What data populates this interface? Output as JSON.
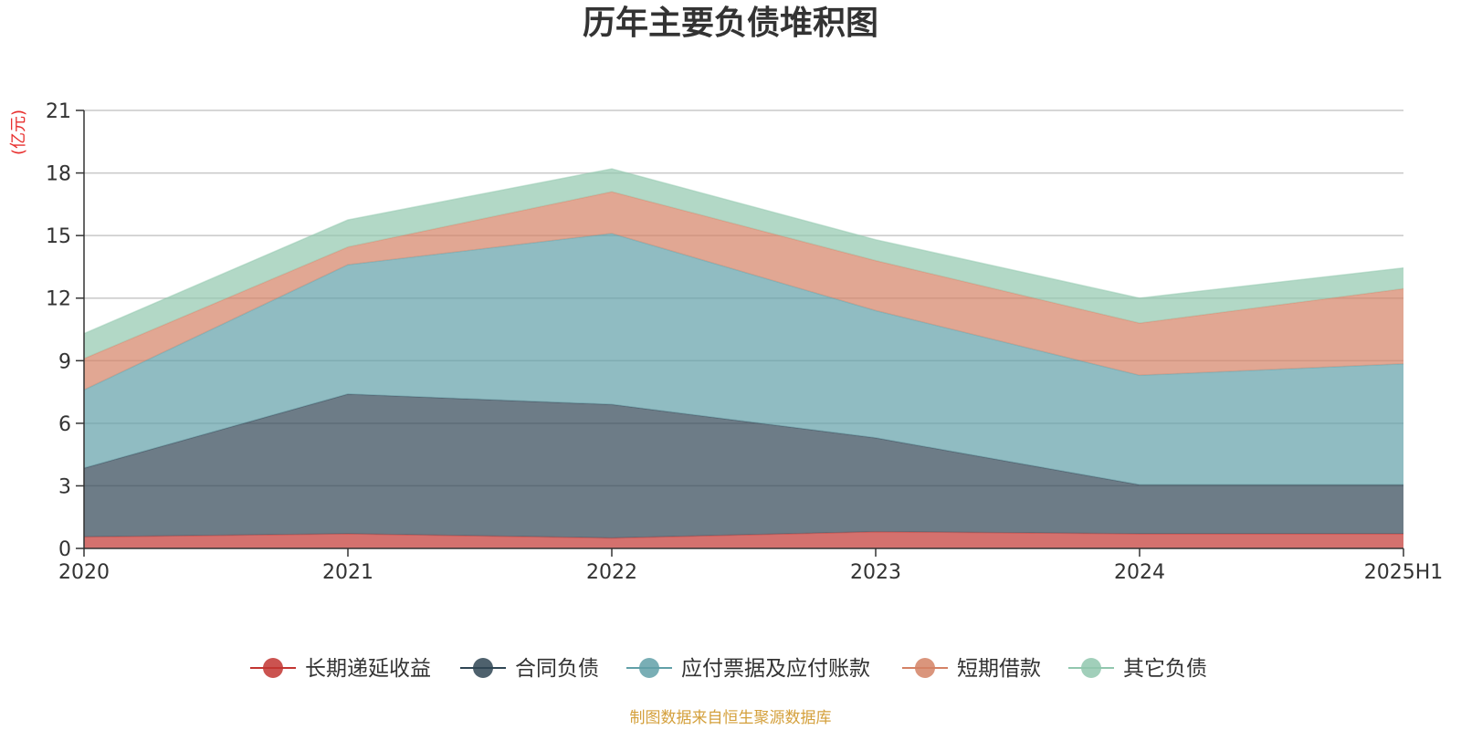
{
  "chart_data": {
    "type": "area",
    "title": "历年主要负债堆积图",
    "y_unit": "(亿元)",
    "categories": [
      "2020",
      "2021",
      "2022",
      "2023",
      "2024",
      "2025H1"
    ],
    "ylim": [
      0,
      21
    ],
    "yticks": [
      0,
      3,
      6,
      9,
      12,
      15,
      18,
      21
    ],
    "grid": true,
    "stacked": true,
    "legend_position": "bottom",
    "series": [
      {
        "name": "长期递延收益",
        "color": "#c23531",
        "values": [
          0.55,
          0.7,
          0.5,
          0.8,
          0.7,
          0.7
        ]
      },
      {
        "name": "合同负债",
        "color": "#2f4554",
        "values": [
          3.3,
          6.7,
          6.4,
          4.5,
          2.35,
          2.35
        ]
      },
      {
        "name": "应付票据及应付账款",
        "color": "#61a0a8",
        "values": [
          3.75,
          6.2,
          8.2,
          6.1,
          5.25,
          5.8
        ]
      },
      {
        "name": "短期借款",
        "color": "#d48265",
        "values": [
          1.5,
          0.85,
          2.0,
          2.4,
          2.5,
          3.6
        ]
      },
      {
        "name": "其它负债",
        "color": "#91c7ae",
        "values": [
          1.2,
          1.3,
          1.1,
          1.0,
          1.2,
          1.0
        ]
      }
    ]
  },
  "footer": {
    "source": "制图数据来自恒生聚源数据库"
  },
  "colors": {
    "axis_unit": "#e8302f",
    "source_text": "#d4a03c",
    "text": "#333333",
    "grid": "#c8c8c8"
  }
}
